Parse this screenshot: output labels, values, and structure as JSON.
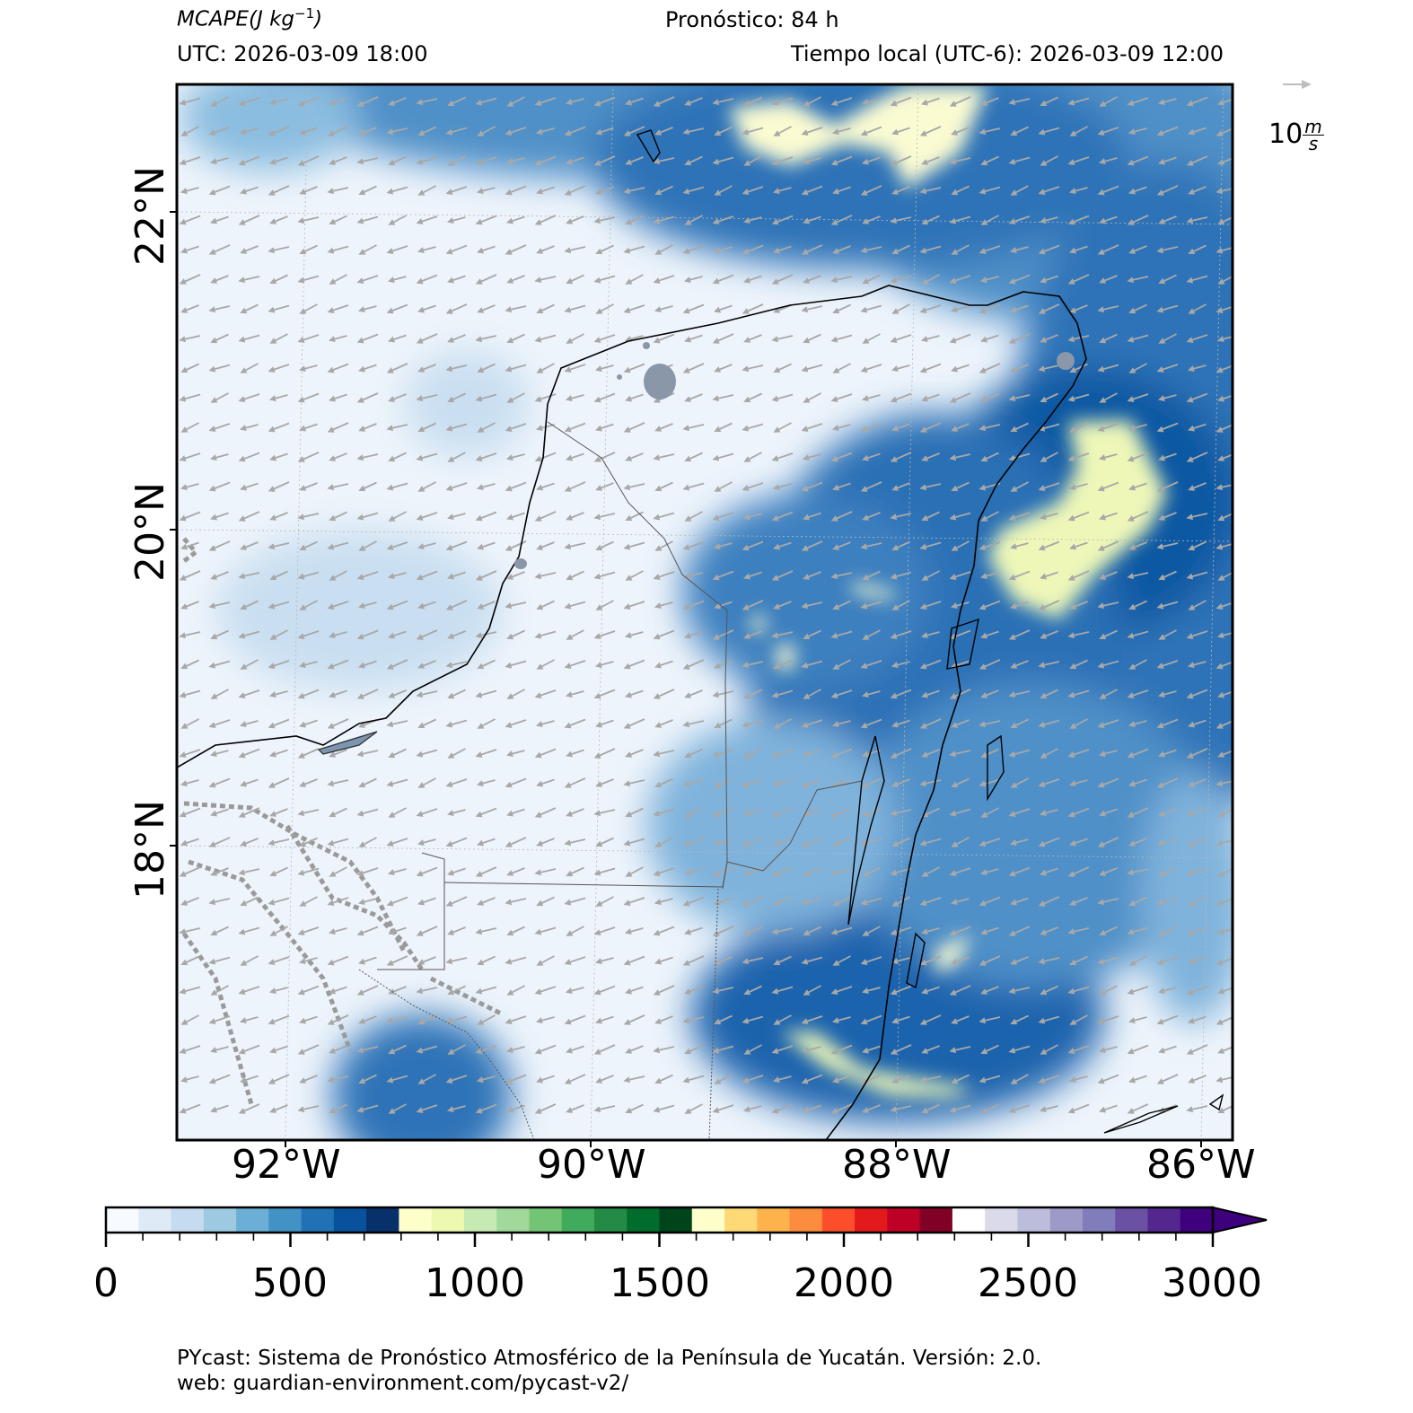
{
  "header": {
    "variable": "MCAPE",
    "units_base": "(J kg",
    "units_exp": "−1",
    "units_close": ")",
    "forecast": "Pronóstico: 84 h",
    "utc_time": "UTC:  2026-03-09 18:00",
    "local_time": "Tiempo local (UTC-6): 2026-03-09 12:00"
  },
  "wind_scale": {
    "value": "10",
    "unit_num": "m",
    "unit_den": "s"
  },
  "map": {
    "lat_labels": [
      "22°N",
      "20°N",
      "18°N"
    ],
    "lon_labels": [
      "92°W",
      "90°W",
      "88°W",
      "86°W"
    ],
    "colors": {
      "low": "#f4f8fd",
      "mid": "#6aa6d6",
      "high": "#0d56a0",
      "peak": "#fbfbd2",
      "coast": "#000000",
      "arrow": "#a8a8a8"
    }
  },
  "colorbar": {
    "min": 0,
    "max": 3000,
    "step": 100,
    "tick_labels": [
      "0",
      "500",
      "1000",
      "1500",
      "2000",
      "2500",
      "3000"
    ],
    "colors": [
      "#f7fbff",
      "#deebf7",
      "#c6dbef",
      "#9ecae1",
      "#6baed6",
      "#4292c6",
      "#2171b5",
      "#08519c",
      "#08306b",
      "#ffffcc",
      "#edf8b1",
      "#c7e9b4",
      "#a1d99b",
      "#74c476",
      "#41ab5d",
      "#238b45",
      "#006d2c",
      "#00441b",
      "#ffffcc",
      "#fed976",
      "#feb24c",
      "#fd8d3c",
      "#fc4e2a",
      "#e31a1c",
      "#bd0026",
      "#800026",
      "#ffffff",
      "#dadaeb",
      "#bcbddc",
      "#9e9ac8",
      "#807dba",
      "#6a51a3",
      "#54278f",
      "#3f007d"
    ],
    "extend": "max"
  },
  "footer": {
    "line1": "PYcast: Sistema de Pronóstico Atmosférico de la Península de Yucatán. Versión: 2.0.",
    "line2": "web: guardian-environment.com/pycast-v2/"
  }
}
